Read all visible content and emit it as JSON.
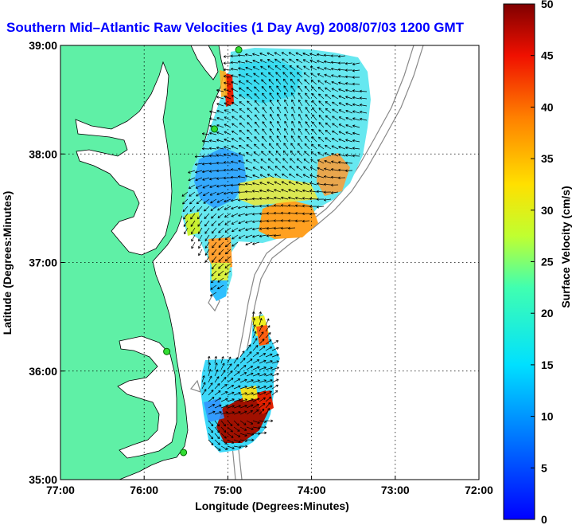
{
  "title": "Southern Mid–Atlantic Raw Velocities (1 Day Avg) 2008/07/03 1200 GMT",
  "title_color": "#0000ff",
  "map": {
    "lon_range": [
      -77,
      -72
    ],
    "lat_range": [
      35,
      39
    ],
    "x_ticks": [
      "77:00",
      "76:00",
      "75:00",
      "74:00",
      "73:00",
      "72:00"
    ],
    "y_ticks": [
      "35:00",
      "36:00",
      "37:00",
      "38:00",
      "39:00"
    ],
    "xlabel": "Longitude (Degrees:Minutes)",
    "ylabel": "Latitude (Degrees:Minutes)",
    "land_color": "#5ff0a6",
    "grid": true,
    "stations": [
      {
        "lon": -74.87,
        "lat": 38.96
      },
      {
        "lon": -75.16,
        "lat": 38.23
      },
      {
        "lon": -75.73,
        "lat": 36.18
      },
      {
        "lon": -75.53,
        "lat": 35.25
      }
    ]
  },
  "colorbar": {
    "label": "Surface Velocity (cm/s)",
    "min": 0,
    "max": 50,
    "ticks": [
      "0",
      "5",
      "10",
      "15",
      "20",
      "25",
      "30",
      "35",
      "40",
      "45",
      "50"
    ],
    "colormap": "jet"
  }
}
